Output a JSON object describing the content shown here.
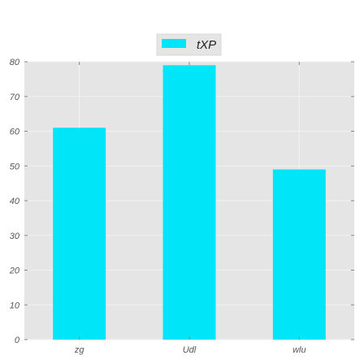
{
  "chart_data": {
    "type": "bar",
    "categories": [
      "zg",
      "Udl",
      "wlu"
    ],
    "series": [
      {
        "name": "tXP",
        "values": [
          61,
          79,
          49
        ]
      }
    ],
    "ylim": [
      0,
      80
    ],
    "yticks": [
      0,
      10,
      20,
      30,
      40,
      50,
      60,
      70,
      80
    ],
    "grid": true,
    "legend_position": "top-center",
    "colors": {
      "bar": "#00e5f7",
      "plot_background": "#e5e5e5",
      "grid": "#f2f2f2"
    }
  }
}
